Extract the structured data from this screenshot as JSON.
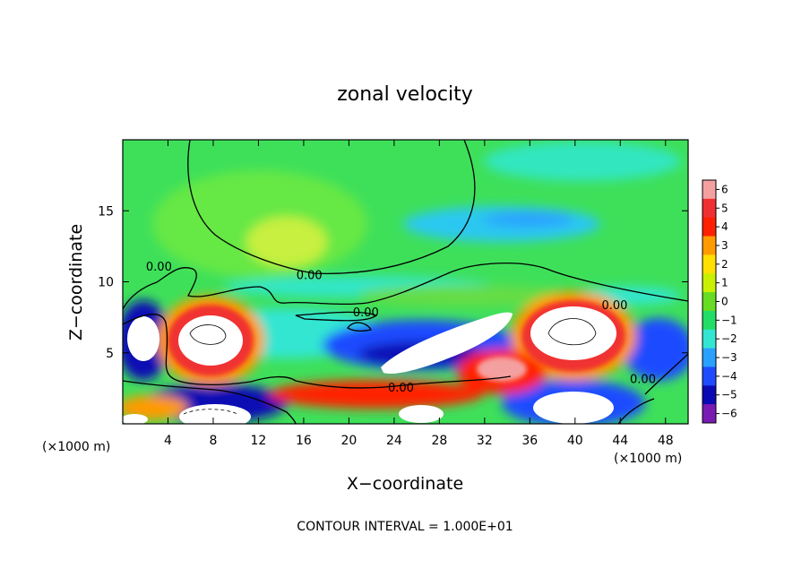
{
  "chart_data": {
    "type": "heatmap",
    "title": "zonal velocity",
    "xlabel": "X−coordinate",
    "ylabel": "Z−coordinate",
    "x_unit_label": "(×1000 m)",
    "x_unit_label_right": "(×1000 m)",
    "xlim": [
      0,
      50
    ],
    "ylim": [
      0,
      20
    ],
    "xticks": [
      4,
      8,
      12,
      16,
      20,
      24,
      28,
      32,
      36,
      40,
      44,
      48
    ],
    "xtick_labels": [
      "4",
      "8",
      "12",
      "16",
      "20",
      "24",
      "28",
      "32",
      "36",
      "40",
      "44",
      "48"
    ],
    "yticks": [
      5,
      10,
      15
    ],
    "ytick_labels": [
      "5",
      "10",
      "15"
    ],
    "colorbar": {
      "levels": [
        6,
        5,
        4,
        3,
        2,
        1,
        0,
        -1,
        -2,
        -3,
        -4,
        -5,
        -6
      ],
      "labels": [
        "6",
        "5",
        "4",
        "3",
        "2",
        "1",
        "0",
        "−1",
        "−2",
        "−3",
        "−4",
        "−5",
        "−6"
      ],
      "colors": [
        "#f5a0a0",
        "#f03030",
        "#ff2000",
        "#ff9a00",
        "#ffe000",
        "#c8f000",
        "#66dd22",
        "#22dd66",
        "#33e6d2",
        "#2aa0ff",
        "#1e4bff",
        "#0a0ab4",
        "#7a1ab4"
      ]
    },
    "contour_labels": [
      {
        "text": "0.00",
        "x": 3.2,
        "z": 11.1
      },
      {
        "text": "0.00",
        "x": 16.5,
        "z": 10.5
      },
      {
        "text": "0.00",
        "x": 21.5,
        "z": 7.9
      },
      {
        "text": "0.00",
        "x": 43.5,
        "z": 8.4
      },
      {
        "text": "0.00",
        "x": 24.6,
        "z": 2.6
      },
      {
        "text": "0.00",
        "x": 46.0,
        "z": 3.2
      }
    ],
    "contour_interval_text": "CONTOUR INTERVAL = 1.000E+01",
    "grid": false,
    "legend": "right colorbar"
  }
}
